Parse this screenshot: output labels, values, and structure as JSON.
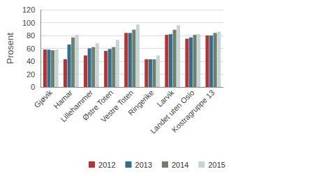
{
  "chart_data": {
    "type": "bar",
    "y_label": "Prosent",
    "categories": [
      "Gjøvik",
      "Hamar",
      "Lillehammer",
      "Østre Toten",
      "Vestre Toten",
      "Ringerike",
      "Larvik",
      "Landet uten Oslo",
      "Kostragruppe 13"
    ],
    "series": [
      {
        "name": "2012",
        "color": "#b83232",
        "values": [
          58,
          43,
          49,
          56,
          84,
          43,
          81,
          75,
          80
        ]
      },
      {
        "name": "2013",
        "color": "#2f6f8f",
        "values": [
          58,
          66,
          60,
          59,
          84,
          43,
          82,
          77,
          80
        ]
      },
      {
        "name": "2014",
        "color": "#6f7f6b",
        "values": [
          57,
          77,
          62,
          62,
          89,
          43,
          89,
          81,
          84
        ]
      },
      {
        "name": "2015",
        "color": "#c5d5d5",
        "values": [
          58,
          81,
          68,
          73,
          97,
          49,
          96,
          82,
          86
        ]
      }
    ],
    "ylim": [
      0,
      120
    ],
    "yticks": [
      0,
      20,
      40,
      60,
      80,
      100,
      120
    ],
    "grid": true,
    "legend": "bottom"
  }
}
